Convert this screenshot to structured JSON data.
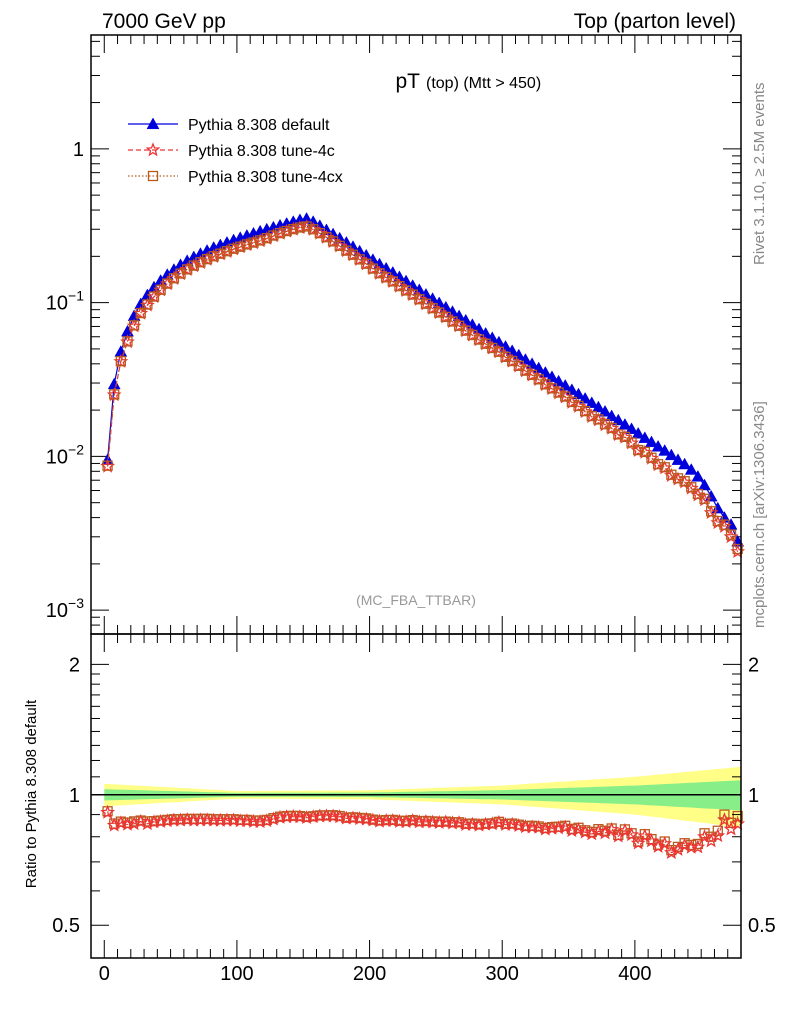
{
  "header": {
    "left": "7000 GeV pp",
    "right": "Top (parton level)"
  },
  "side_text": {
    "upper": "Rivet 3.1.10, ≥ 2.5M events",
    "lower": "mcplots.cern.ch [arXiv:1306.3436]"
  },
  "chart_data": [
    {
      "type": "line",
      "panel": "main",
      "title_main": "pT",
      "title_sub": "(top) (Mtt > 450)",
      "watermark": "(MC_FBA_TTBAR)",
      "yscale": "log",
      "xlim": [
        -10,
        480
      ],
      "ylim": [
        0.0007,
        5.5
      ],
      "ytick_labels": [
        {
          "base": "10",
          "exp": "−3",
          "value": 0.001
        },
        {
          "base": "10",
          "exp": "−2",
          "value": 0.01
        },
        {
          "base": "10",
          "exp": "−1",
          "value": 0.1
        },
        {
          "base": "1",
          "exp": "",
          "value": 1
        }
      ],
      "legend_position": "top-left",
      "x": [
        2.5,
        7.5,
        12.5,
        17.5,
        22.5,
        27.5,
        32.5,
        37.5,
        42.5,
        47.5,
        52.5,
        57.5,
        62.5,
        67.5,
        72.5,
        77.5,
        82.5,
        87.5,
        92.5,
        97.5,
        102.5,
        107.5,
        112.5,
        117.5,
        122.5,
        127.5,
        132.5,
        137.5,
        142.5,
        147.5,
        152.5,
        157.5,
        162.5,
        167.5,
        172.5,
        177.5,
        182.5,
        187.5,
        192.5,
        197.5,
        202.5,
        207.5,
        212.5,
        217.5,
        222.5,
        227.5,
        232.5,
        237.5,
        242.5,
        247.5,
        252.5,
        257.5,
        262.5,
        267.5,
        272.5,
        277.5,
        282.5,
        287.5,
        292.5,
        297.5,
        302.5,
        307.5,
        312.5,
        317.5,
        322.5,
        327.5,
        332.5,
        337.5,
        342.5,
        347.5,
        352.5,
        357.5,
        362.5,
        367.5,
        372.5,
        377.5,
        382.5,
        387.5,
        392.5,
        397.5,
        402.5,
        407.5,
        412.5,
        417.5,
        422.5,
        427.5,
        432.5,
        437.5,
        442.5,
        447.5,
        452.5,
        457.5,
        462.5,
        467.5,
        472.5,
        477.5
      ],
      "series": [
        {
          "name": "Pythia 8.308 default",
          "color": "#0000dd",
          "marker": "triangle",
          "dash": "solid",
          "values": [
            0.0095,
            0.0295,
            0.048,
            0.065,
            0.082,
            0.098,
            0.112,
            0.126,
            0.139,
            0.152,
            0.164,
            0.176,
            0.187,
            0.198,
            0.208,
            0.218,
            0.228,
            0.237,
            0.246,
            0.255,
            0.264,
            0.273,
            0.282,
            0.291,
            0.3,
            0.309,
            0.318,
            0.327,
            0.336,
            0.345,
            0.352,
            0.336,
            0.316,
            0.297,
            0.279,
            0.262,
            0.246,
            0.231,
            0.216,
            0.203,
            0.19,
            0.178,
            0.167,
            0.157,
            0.147,
            0.138,
            0.129,
            0.121,
            0.113,
            0.106,
            0.0995,
            0.0932,
            0.0873,
            0.0818,
            0.0767,
            0.0718,
            0.0673,
            0.063,
            0.059,
            0.0553,
            0.0518,
            0.0486,
            0.0455,
            0.0426,
            0.04,
            0.0375,
            0.0351,
            0.0329,
            0.0308,
            0.0289,
            0.0271,
            0.0254,
            0.0238,
            0.0223,
            0.0209,
            0.0196,
            0.0183,
            0.0172,
            0.0161,
            0.0151,
            0.0141,
            0.0132,
            0.0124,
            0.0116,
            0.0109,
            0.0102,
            0.0095,
            0.0089,
            0.0082,
            0.0074,
            0.0065,
            0.0055,
            0.0046,
            0.004,
            0.0036,
            0.0028
          ]
        },
        {
          "name": "Pythia 8.308 tune-4c",
          "color": "#ee3333",
          "marker": "star",
          "dash": "dashed",
          "values": [
            0.0086,
            0.0251,
            0.0413,
            0.0555,
            0.0703,
            0.085,
            0.096,
            0.109,
            0.1205,
            0.1322,
            0.1432,
            0.1537,
            0.1636,
            0.1729,
            0.1818,
            0.1906,
            0.1991,
            0.2066,
            0.2147,
            0.2226,
            0.2298,
            0.2375,
            0.2445,
            0.252,
            0.261,
            0.2713,
            0.2818,
            0.2907,
            0.2991,
            0.3066,
            0.3116,
            0.2987,
            0.2819,
            0.2652,
            0.249,
            0.233,
            0.2169,
            0.2039,
            0.1902,
            0.1782,
            0.1658,
            0.1546,
            0.1454,
            0.1368,
            0.1275,
            0.1195,
            0.1123,
            0.1047,
            0.0979,
            0.0916,
            0.0858,
            0.0805,
            0.0751,
            0.0704,
            0.0654,
            0.0613,
            0.0572,
            0.0538,
            0.0505,
            0.0477,
            0.0442,
            0.0415,
            0.0386,
            0.0359,
            0.0337,
            0.0315,
            0.0292,
            0.0275,
            0.0258,
            0.0243,
            0.0224,
            0.0211,
            0.0195,
            0.0181,
            0.0172,
            0.016,
            0.0152,
            0.0138,
            0.0133,
            0.0122,
            0.0109,
            0.0106,
            0.0097,
            0.0088,
            0.0084,
            0.0075,
            0.0071,
            0.0068,
            0.0062,
            0.0056,
            0.0052,
            0.0043,
            0.0037,
            0.0035,
            0.003,
            0.0024
          ]
        },
        {
          "name": "Pythia 8.308 tune-4cx",
          "color": "#b85c1e",
          "marker": "square",
          "dash": "dotted",
          "values": [
            0.0087,
            0.0253,
            0.0416,
            0.056,
            0.0712,
            0.0855,
            0.0972,
            0.1095,
            0.1212,
            0.133,
            0.144,
            0.1545,
            0.1645,
            0.174,
            0.183,
            0.1918,
            0.2002,
            0.208,
            0.216,
            0.224,
            0.231,
            0.239,
            0.2458,
            0.2538,
            0.2625,
            0.273,
            0.283,
            0.292,
            0.3005,
            0.308,
            0.3128,
            0.2998,
            0.283,
            0.2662,
            0.2502,
            0.234,
            0.2178,
            0.2048,
            0.191,
            0.179,
            0.1665,
            0.1553,
            0.146,
            0.1374,
            0.1281,
            0.12,
            0.1128,
            0.1052,
            0.0983,
            0.092,
            0.0862,
            0.0808,
            0.0754,
            0.0707,
            0.0657,
            0.0616,
            0.0575,
            0.054,
            0.0507,
            0.0479,
            0.0444,
            0.0417,
            0.0388,
            0.0361,
            0.0339,
            0.0317,
            0.0294,
            0.0277,
            0.026,
            0.0245,
            0.0226,
            0.0213,
            0.0197,
            0.0183,
            0.0174,
            0.0162,
            0.0153,
            0.0139,
            0.0134,
            0.0123,
            0.011,
            0.0107,
            0.0098,
            0.0089,
            0.0085,
            0.0076,
            0.0072,
            0.0069,
            0.0063,
            0.0057,
            0.0053,
            0.0044,
            0.0038,
            0.0036,
            0.0031,
            0.0025
          ]
        }
      ]
    },
    {
      "type": "line",
      "panel": "ratio",
      "ylabel": "Ratio to Pythia 8.308 default",
      "xlim": [
        -10,
        480
      ],
      "ylim": [
        0.42,
        2.35
      ],
      "yticks": [
        0.5,
        1,
        2
      ],
      "ytick_labels": [
        "0.5",
        "1",
        "2"
      ],
      "xticks": [
        0,
        100,
        200,
        300,
        400
      ],
      "xtick_labels": [
        "0",
        "100",
        "200",
        "300",
        "400"
      ],
      "band_colors": {
        "inner": "#88ee88",
        "outer": "#ffff88"
      },
      "band_inner_halfwidth": {
        "x": [
          0,
          100,
          200,
          300,
          400,
          480
        ],
        "values": [
          0.03,
          0.01,
          0.012,
          0.025,
          0.05,
          0.08
        ]
      },
      "band_outer_halfwidth": {
        "x": [
          0,
          100,
          200,
          300,
          400,
          480
        ],
        "values": [
          0.06,
          0.02,
          0.024,
          0.05,
          0.1,
          0.16
        ]
      },
      "series": [
        {
          "name": "Pythia 8.308 tune-4c",
          "color": "#ee3333",
          "values": [
            0.91,
            0.85,
            0.86,
            0.854,
            0.857,
            0.867,
            0.857,
            0.865,
            0.867,
            0.87,
            0.873,
            0.873,
            0.875,
            0.873,
            0.874,
            0.874,
            0.873,
            0.872,
            0.873,
            0.873,
            0.87,
            0.87,
            0.867,
            0.866,
            0.87,
            0.878,
            0.886,
            0.889,
            0.89,
            0.889,
            0.885,
            0.889,
            0.892,
            0.893,
            0.892,
            0.889,
            0.882,
            0.883,
            0.88,
            0.878,
            0.873,
            0.868,
            0.871,
            0.871,
            0.867,
            0.866,
            0.871,
            0.865,
            0.866,
            0.864,
            0.862,
            0.864,
            0.86,
            0.861,
            0.853,
            0.854,
            0.85,
            0.854,
            0.856,
            0.862,
            0.853,
            0.854,
            0.848,
            0.843,
            0.842,
            0.84,
            0.832,
            0.836,
            0.838,
            0.841,
            0.826,
            0.831,
            0.819,
            0.812,
            0.823,
            0.816,
            0.831,
            0.802,
            0.826,
            0.808,
            0.773,
            0.803,
            0.782,
            0.759,
            0.771,
            0.735,
            0.747,
            0.764,
            0.756,
            0.757,
            0.8,
            0.782,
            0.804,
            0.875,
            0.833,
            0.857
          ]
        },
        {
          "name": "Pythia 8.308 tune-4cx",
          "color": "#b85c1e",
          "values": [
            0.916,
            0.858,
            0.867,
            0.862,
            0.868,
            0.872,
            0.868,
            0.869,
            0.872,
            0.875,
            0.878,
            0.878,
            0.88,
            0.879,
            0.88,
            0.88,
            0.878,
            0.878,
            0.878,
            0.878,
            0.875,
            0.875,
            0.872,
            0.872,
            0.875,
            0.883,
            0.89,
            0.893,
            0.894,
            0.893,
            0.889,
            0.892,
            0.896,
            0.896,
            0.897,
            0.893,
            0.885,
            0.887,
            0.884,
            0.882,
            0.876,
            0.872,
            0.874,
            0.875,
            0.871,
            0.87,
            0.874,
            0.869,
            0.87,
            0.868,
            0.866,
            0.867,
            0.864,
            0.864,
            0.857,
            0.858,
            0.854,
            0.857,
            0.859,
            0.866,
            0.857,
            0.858,
            0.853,
            0.847,
            0.848,
            0.845,
            0.838,
            0.842,
            0.844,
            0.848,
            0.834,
            0.839,
            0.828,
            0.821,
            0.833,
            0.826,
            0.836,
            0.808,
            0.832,
            0.815,
            0.78,
            0.811,
            0.79,
            0.767,
            0.78,
            0.745,
            0.758,
            0.773,
            0.766,
            0.77,
            0.815,
            0.8,
            0.826,
            0.9,
            0.861,
            0.893
          ]
        }
      ]
    }
  ]
}
